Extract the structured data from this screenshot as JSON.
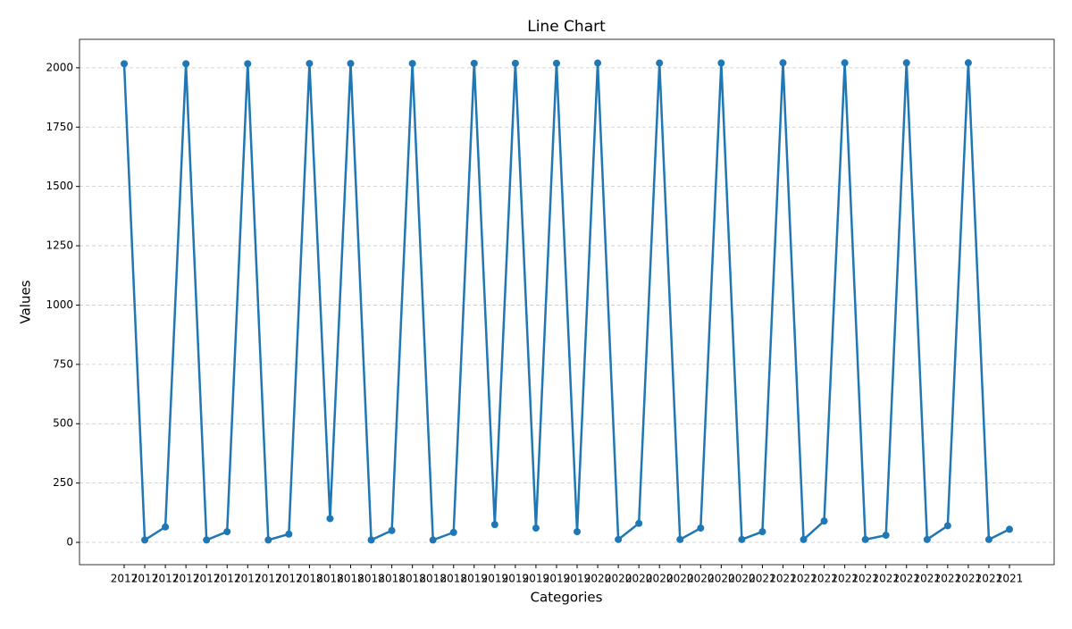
{
  "chart_data": {
    "type": "line",
    "title": "Line Chart",
    "x_label": "Categories",
    "y_label": "Values",
    "categories": [
      "2017",
      "2017",
      "2017",
      "2017",
      "2017",
      "2017",
      "2017",
      "2017",
      "2017",
      "2018",
      "2018",
      "2018",
      "2018",
      "2018",
      "2018",
      "2018",
      "2018",
      "2019",
      "2019",
      "2019",
      "2019",
      "2019",
      "2019",
      "2020",
      "2020",
      "2020",
      "2020",
      "2020",
      "2020",
      "2020",
      "2020",
      "2021",
      "2021",
      "2021",
      "2021",
      "2021",
      "2021",
      "2021",
      "2021",
      "2021",
      "2021",
      "2021",
      "2021",
      "2021"
    ],
    "series": [
      {
        "name": "Values",
        "color": "#1f77b4",
        "values": [
          2017,
          10,
          65,
          2017,
          10,
          45,
          2017,
          10,
          35,
          2018,
          100,
          2018,
          10,
          50,
          2018,
          10,
          42,
          2019,
          75,
          2019,
          60,
          2019,
          45,
          2020,
          12,
          80,
          2020,
          12,
          60,
          2020,
          12,
          45,
          2021,
          12,
          90,
          2021,
          12,
          30,
          2021,
          12,
          70,
          2021,
          12,
          55
        ]
      }
    ],
    "ylim": [
      -94,
      2120
    ],
    "yticks": [
      0,
      250,
      500,
      750,
      1000,
      1250,
      1500,
      1750,
      2000
    ],
    "grid": true
  }
}
